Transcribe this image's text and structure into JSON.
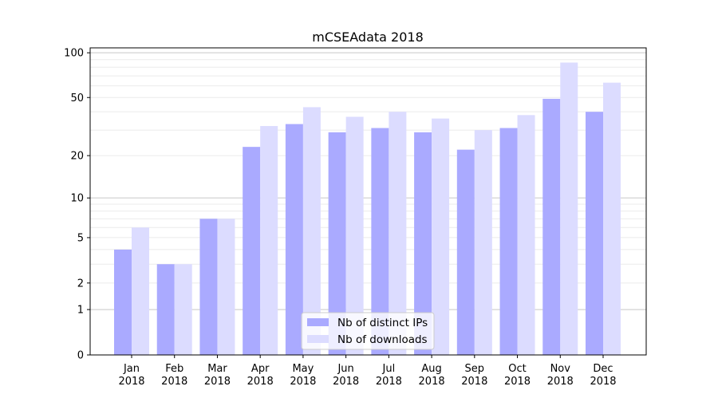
{
  "chart_data": {
    "type": "bar",
    "title": "mCSEAdata 2018",
    "xlabel": "",
    "ylabel": "",
    "yscale": "log(x+1)",
    "ylim": [
      0,
      110
    ],
    "yticks": [
      0,
      1,
      2,
      5,
      10,
      20,
      50,
      100
    ],
    "ytick_labels": [
      "0",
      "1",
      "2",
      "5",
      "10",
      "20",
      "50",
      "100"
    ],
    "grid": true,
    "categories": [
      [
        "Jan",
        "2018"
      ],
      [
        "Feb",
        "2018"
      ],
      [
        "Mar",
        "2018"
      ],
      [
        "Apr",
        "2018"
      ],
      [
        "May",
        "2018"
      ],
      [
        "Jun",
        "2018"
      ],
      [
        "Jul",
        "2018"
      ],
      [
        "Aug",
        "2018"
      ],
      [
        "Sep",
        "2018"
      ],
      [
        "Oct",
        "2018"
      ],
      [
        "Nov",
        "2018"
      ],
      [
        "Dec",
        "2018"
      ]
    ],
    "series": [
      {
        "name": "Nb of distinct IPs",
        "color": "#aaaaff",
        "values": [
          4,
          3,
          7,
          23,
          33,
          29,
          31,
          29,
          22,
          31,
          49,
          40
        ]
      },
      {
        "name": "Nb of downloads",
        "color": "#dcdcff",
        "values": [
          6,
          3,
          7,
          32,
          43,
          37,
          40,
          36,
          30,
          38,
          86,
          63
        ]
      }
    ],
    "legend": {
      "placement": "bottom-center"
    }
  }
}
